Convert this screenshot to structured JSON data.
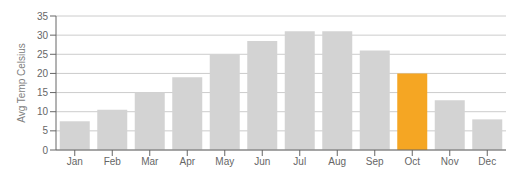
{
  "chart_data": {
    "type": "bar",
    "ylabel": "Avg Temp Celsius",
    "categories": [
      "Jan",
      "Feb",
      "Mar",
      "Apr",
      "May",
      "Jun",
      "Jul",
      "Aug",
      "Sep",
      "Oct",
      "Nov",
      "Dec"
    ],
    "values": [
      7.5,
      10.5,
      15,
      19,
      25,
      28.5,
      31,
      31,
      26,
      20,
      13,
      8
    ],
    "colors": [
      "#d3d3d3",
      "#d3d3d3",
      "#d3d3d3",
      "#d3d3d3",
      "#d3d3d3",
      "#d3d3d3",
      "#d3d3d3",
      "#d3d3d3",
      "#d3d3d3",
      "#f5a623",
      "#d3d3d3",
      "#d3d3d3"
    ],
    "ylim": [
      0,
      35
    ],
    "yticks": [
      0,
      5,
      10,
      15,
      20,
      25,
      30,
      35
    ],
    "grid": true
  }
}
